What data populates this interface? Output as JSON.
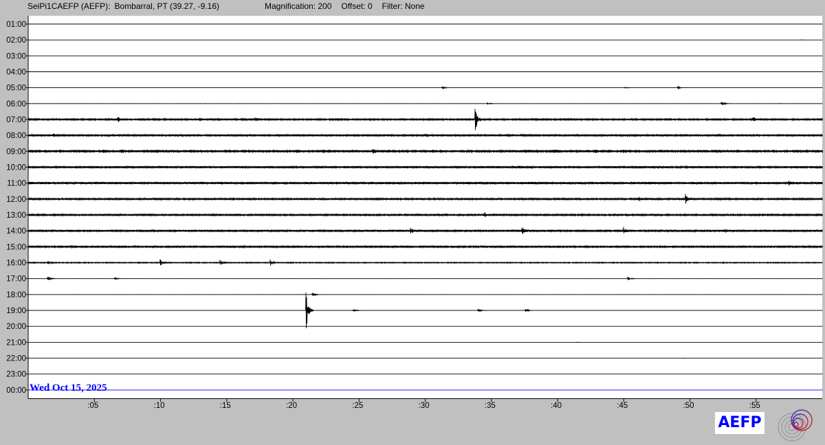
{
  "header": {
    "station": "SeiPi1CAEFP (AEFP):",
    "location": "Bombarral, PT (39.27, -9.16)",
    "magnification": "Magnification: 200",
    "offset": "Offset: 0",
    "filter": "Filter: None"
  },
  "date_label": "Wed Oct 15, 2025",
  "logo": {
    "text": "AEFP"
  },
  "colors": {
    "trace": "#000000",
    "current_row": "#0000ff",
    "background": "#c0c0c0",
    "plot": "#ffffff"
  },
  "chart_data": {
    "type": "line",
    "title": "",
    "xlabel": "",
    "ylabel": "",
    "x_tick_labels": [
      ":05",
      ":10",
      ":15",
      ":20",
      ":25",
      ":30",
      ":35",
      ":40",
      ":45",
      ":50",
      ":55"
    ],
    "x_ticks_minutes": [
      5,
      10,
      15,
      20,
      25,
      30,
      35,
      40,
      45,
      50,
      55
    ],
    "xlim": [
      0,
      60
    ],
    "rows": [
      {
        "label": "01:00",
        "noise": 0.0,
        "events": []
      },
      {
        "label": "02:00",
        "noise": 0.0,
        "events": [
          [
            58.4,
            0.3
          ]
        ]
      },
      {
        "label": "03:00",
        "noise": 0.0,
        "events": []
      },
      {
        "label": "04:00",
        "noise": 0.0,
        "events": []
      },
      {
        "label": "05:00",
        "noise": 0.05,
        "events": [
          [
            31.3,
            2
          ],
          [
            45.1,
            1
          ],
          [
            49.1,
            3
          ]
        ]
      },
      {
        "label": "06:00",
        "noise": 0.1,
        "events": [
          [
            34.7,
            2
          ],
          [
            52.4,
            4
          ]
        ]
      },
      {
        "label": "07:00",
        "noise": 0.8,
        "events": [
          [
            6.8,
            3
          ],
          [
            12.9,
            2
          ],
          [
            17.1,
            5
          ],
          [
            33.8,
            -12
          ],
          [
            54.8,
            3
          ]
        ]
      },
      {
        "label": "08:00",
        "noise": 0.9,
        "events": [
          [
            1.9,
            3
          ],
          [
            30.0,
            2
          ]
        ]
      },
      {
        "label": "09:00",
        "noise": 1.6,
        "events": [
          [
            26.0,
            3
          ]
        ]
      },
      {
        "label": "10:00",
        "noise": 1.2,
        "events": [
          [
            37.1,
            2
          ]
        ]
      },
      {
        "label": "11:00",
        "noise": 1.3,
        "events": [
          [
            57.5,
            3
          ]
        ]
      },
      {
        "label": "12:00",
        "noise": 0.9,
        "events": [
          [
            46.1,
            4
          ],
          [
            49.7,
            6
          ]
        ]
      },
      {
        "label": "13:00",
        "noise": 0.9,
        "events": [
          [
            34.4,
            5
          ]
        ]
      },
      {
        "label": "14:00",
        "noise": 1.1,
        "events": [
          [
            28.9,
            4
          ],
          [
            37.3,
            6
          ],
          [
            45.0,
            4
          ],
          [
            52.6,
            3
          ]
        ]
      },
      {
        "label": "15:00",
        "noise": 0.9,
        "events": [
          [
            3.3,
            2
          ]
        ]
      },
      {
        "label": "16:00",
        "noise": 0.5,
        "events": [
          [
            1.5,
            2
          ],
          [
            10.0,
            5
          ],
          [
            14.5,
            4
          ],
          [
            18.3,
            4
          ]
        ]
      },
      {
        "label": "17:00",
        "noise": 0.1,
        "events": [
          [
            1.5,
            4
          ],
          [
            6.5,
            3
          ],
          [
            45.3,
            3
          ]
        ]
      },
      {
        "label": "18:00",
        "noise": 0.05,
        "events": [
          [
            21.5,
            5
          ]
        ]
      },
      {
        "label": "19:00",
        "noise": 0.05,
        "events": [
          [
            21.0,
            -24
          ],
          [
            24.5,
            4
          ],
          [
            34.0,
            3
          ],
          [
            37.6,
            3
          ]
        ]
      },
      {
        "label": "20:00",
        "noise": 0.0,
        "events": []
      },
      {
        "label": "21:00",
        "noise": 0.0,
        "events": [
          [
            41.5,
            0.3
          ]
        ]
      },
      {
        "label": "22:00",
        "noise": 0.0,
        "events": [
          [
            49.5,
            0.3
          ]
        ]
      },
      {
        "label": "23:00",
        "noise": 0.0,
        "events": []
      },
      {
        "label": "00:00",
        "noise": 0.0,
        "events": [],
        "current": true
      }
    ]
  }
}
